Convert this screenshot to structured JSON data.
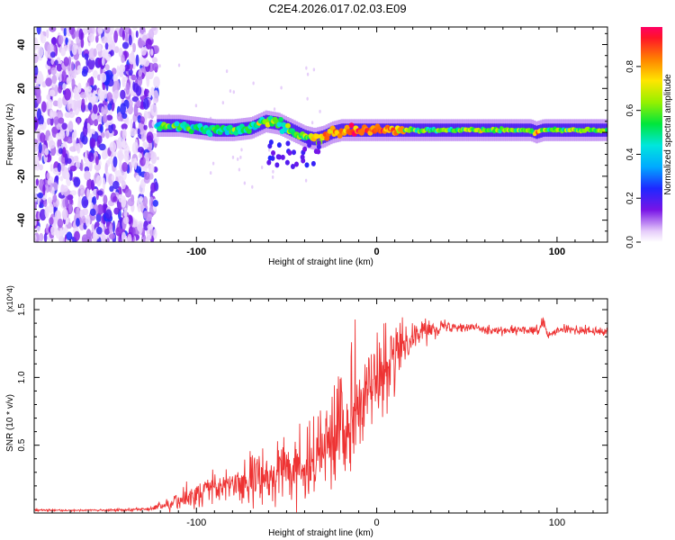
{
  "title": "C2E4.2026.017.02.03.E09",
  "chart_data": [
    {
      "type": "heatmap",
      "title": "C2E4.2026.017.02.03.E09",
      "xlabel": "Height of straight line (km)",
      "ylabel": "Frequency (Hz)",
      "xlim": [
        -190,
        128
      ],
      "ylim": [
        -50,
        48
      ],
      "xticks": [
        -100,
        0,
        100
      ],
      "yticks": [
        -40,
        -20,
        0,
        20,
        40
      ],
      "colorbar": {
        "label": "Normalized spectral amplitude",
        "range": [
          0,
          0.98
        ],
        "ticks": [
          0.0,
          0.2,
          0.4,
          0.6,
          0.8
        ]
      },
      "noise_region_x": [
        -190,
        -122
      ],
      "signal_track": {
        "x": [
          -122,
          -110,
          -100,
          -90,
          -80,
          -70,
          -62,
          -55,
          -50,
          -45,
          -40,
          -35,
          -30,
          -25,
          -20,
          -10,
          0,
          10,
          20,
          40,
          60,
          85,
          88,
          92,
          100,
          128
        ],
        "freq": [
          3,
          3,
          2,
          1,
          1,
          2,
          5,
          4,
          2,
          0,
          -2,
          -3,
          -2,
          0,
          1,
          1,
          1,
          1,
          1,
          1,
          1,
          1,
          0,
          1,
          1,
          1
        ],
        "amplitude": [
          0.45,
          0.5,
          0.45,
          0.55,
          0.5,
          0.55,
          0.6,
          0.55,
          0.5,
          0.55,
          0.6,
          0.7,
          0.75,
          0.8,
          0.85,
          0.95,
          0.9,
          0.85,
          0.6,
          0.6,
          0.6,
          0.6,
          0.8,
          0.6,
          0.6,
          0.6
        ]
      }
    },
    {
      "type": "line",
      "xlabel": "Height of straight line (km)",
      "ylabel": "SNR (10 * v/v)",
      "multiplier": "(x10^4)",
      "xlim": [
        -190,
        128
      ],
      "ylim": [
        0,
        1.58
      ],
      "xticks": [
        -100,
        0,
        100
      ],
      "yticks": [
        0.5,
        1.0,
        1.5
      ],
      "series": [
        {
          "name": "SNR",
          "color": "#ee3333",
          "x": [
            -190,
            -150,
            -125,
            -115,
            -100,
            -90,
            -80,
            -70,
            -60,
            -50,
            -40,
            -35,
            -30,
            -25,
            -20,
            -15,
            -10,
            -5,
            0,
            5,
            10,
            12,
            15,
            20,
            30,
            40,
            50,
            60,
            70,
            80,
            90,
            92,
            95,
            100,
            110,
            128
          ],
          "y": [
            0.02,
            0.02,
            0.03,
            0.07,
            0.12,
            0.17,
            0.22,
            0.24,
            0.27,
            0.3,
            0.31,
            0.36,
            0.45,
            0.55,
            0.7,
            0.72,
            0.8,
            0.9,
            1.0,
            1.05,
            1.12,
            1.2,
            1.25,
            1.32,
            1.36,
            1.38,
            1.37,
            1.36,
            1.34,
            1.35,
            1.34,
            1.42,
            1.3,
            1.35,
            1.35,
            1.33
          ],
          "amp": [
            0.005,
            0.006,
            0.01,
            0.04,
            0.07,
            0.09,
            0.11,
            0.13,
            0.14,
            0.16,
            0.15,
            0.17,
            0.2,
            0.24,
            0.28,
            0.28,
            0.26,
            0.24,
            0.22,
            0.22,
            0.2,
            0.15,
            0.12,
            0.08,
            0.05,
            0.03,
            0.025,
            0.025,
            0.025,
            0.025,
            0.025,
            0.03,
            0.025,
            0.025,
            0.025,
            0.025
          ]
        }
      ]
    }
  ]
}
